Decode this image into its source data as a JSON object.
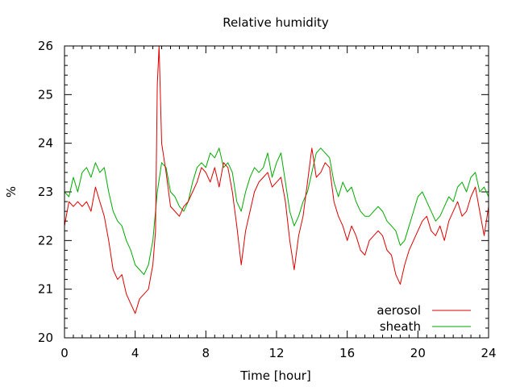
{
  "chart_data": {
    "type": "line",
    "title": "Relative humidity",
    "xlabel": "Time [hour]",
    "ylabel": "%",
    "xlim": [
      0,
      24
    ],
    "ylim": [
      20,
      26
    ],
    "x_ticks": [
      0,
      4,
      8,
      12,
      16,
      20,
      24
    ],
    "y_ticks": [
      20,
      21,
      22,
      23,
      24,
      25,
      26
    ],
    "legend_position": "bottom-right",
    "grid": false,
    "series": [
      {
        "name": "aerosol",
        "color": "#dd0000",
        "points": [
          [
            0,
            22.3
          ],
          [
            0.25,
            22.8
          ],
          [
            0.5,
            22.7
          ],
          [
            0.75,
            22.8
          ],
          [
            1,
            22.7
          ],
          [
            1.25,
            22.8
          ],
          [
            1.5,
            22.6
          ],
          [
            1.75,
            23.1
          ],
          [
            2,
            22.8
          ],
          [
            2.25,
            22.5
          ],
          [
            2.5,
            22.0
          ],
          [
            2.75,
            21.4
          ],
          [
            3,
            21.2
          ],
          [
            3.25,
            21.3
          ],
          [
            3.5,
            20.9
          ],
          [
            3.75,
            20.7
          ],
          [
            4,
            20.5
          ],
          [
            4.25,
            20.8
          ],
          [
            4.5,
            20.9
          ],
          [
            4.75,
            21.0
          ],
          [
            5,
            21.5
          ],
          [
            5.15,
            22.2
          ],
          [
            5.25,
            25.2
          ],
          [
            5.35,
            26.0
          ],
          [
            5.5,
            24.0
          ],
          [
            5.75,
            23.4
          ],
          [
            6,
            22.7
          ],
          [
            6.25,
            22.6
          ],
          [
            6.5,
            22.5
          ],
          [
            6.75,
            22.7
          ],
          [
            7,
            22.8
          ],
          [
            7.25,
            23.0
          ],
          [
            7.5,
            23.2
          ],
          [
            7.75,
            23.5
          ],
          [
            8,
            23.4
          ],
          [
            8.25,
            23.2
          ],
          [
            8.5,
            23.5
          ],
          [
            8.75,
            23.1
          ],
          [
            9,
            23.6
          ],
          [
            9.25,
            23.5
          ],
          [
            9.5,
            23.0
          ],
          [
            9.75,
            22.3
          ],
          [
            10,
            21.5
          ],
          [
            10.25,
            22.2
          ],
          [
            10.5,
            22.6
          ],
          [
            10.75,
            23.0
          ],
          [
            11,
            23.2
          ],
          [
            11.25,
            23.3
          ],
          [
            11.5,
            23.4
          ],
          [
            11.75,
            23.1
          ],
          [
            12,
            23.2
          ],
          [
            12.25,
            23.3
          ],
          [
            12.5,
            22.8
          ],
          [
            12.75,
            22.0
          ],
          [
            13,
            21.4
          ],
          [
            13.25,
            22.1
          ],
          [
            13.5,
            22.5
          ],
          [
            13.75,
            23.2
          ],
          [
            14,
            23.9
          ],
          [
            14.25,
            23.3
          ],
          [
            14.5,
            23.4
          ],
          [
            14.75,
            23.6
          ],
          [
            15,
            23.5
          ],
          [
            15.25,
            22.8
          ],
          [
            15.5,
            22.5
          ],
          [
            15.75,
            22.3
          ],
          [
            16,
            22.0
          ],
          [
            16.25,
            22.3
          ],
          [
            16.5,
            22.1
          ],
          [
            16.75,
            21.8
          ],
          [
            17,
            21.7
          ],
          [
            17.25,
            22.0
          ],
          [
            17.5,
            22.1
          ],
          [
            17.75,
            22.2
          ],
          [
            18,
            22.1
          ],
          [
            18.25,
            21.8
          ],
          [
            18.5,
            21.7
          ],
          [
            18.75,
            21.3
          ],
          [
            19,
            21.1
          ],
          [
            19.25,
            21.5
          ],
          [
            19.5,
            21.8
          ],
          [
            19.75,
            22.0
          ],
          [
            20,
            22.2
          ],
          [
            20.25,
            22.4
          ],
          [
            20.5,
            22.5
          ],
          [
            20.75,
            22.2
          ],
          [
            21,
            22.1
          ],
          [
            21.25,
            22.3
          ],
          [
            21.5,
            22.0
          ],
          [
            21.75,
            22.4
          ],
          [
            22,
            22.6
          ],
          [
            22.25,
            22.8
          ],
          [
            22.5,
            22.5
          ],
          [
            22.75,
            22.6
          ],
          [
            23,
            22.9
          ],
          [
            23.25,
            23.1
          ],
          [
            23.5,
            22.6
          ],
          [
            23.75,
            22.1
          ],
          [
            24,
            22.7
          ]
        ]
      },
      {
        "name": "sheath",
        "color": "#00aa00",
        "points": [
          [
            0,
            23.0
          ],
          [
            0.25,
            22.9
          ],
          [
            0.5,
            23.3
          ],
          [
            0.75,
            23.0
          ],
          [
            1,
            23.4
          ],
          [
            1.25,
            23.5
          ],
          [
            1.5,
            23.3
          ],
          [
            1.75,
            23.6
          ],
          [
            2,
            23.4
          ],
          [
            2.25,
            23.5
          ],
          [
            2.5,
            23.0
          ],
          [
            2.75,
            22.6
          ],
          [
            3,
            22.4
          ],
          [
            3.25,
            22.3
          ],
          [
            3.5,
            22.0
          ],
          [
            3.75,
            21.8
          ],
          [
            4,
            21.5
          ],
          [
            4.25,
            21.4
          ],
          [
            4.5,
            21.3
          ],
          [
            4.75,
            21.5
          ],
          [
            5,
            22.0
          ],
          [
            5.25,
            23.0
          ],
          [
            5.5,
            23.6
          ],
          [
            5.75,
            23.5
          ],
          [
            6,
            23.0
          ],
          [
            6.25,
            22.9
          ],
          [
            6.5,
            22.7
          ],
          [
            6.75,
            22.6
          ],
          [
            7,
            22.8
          ],
          [
            7.25,
            23.2
          ],
          [
            7.5,
            23.5
          ],
          [
            7.75,
            23.6
          ],
          [
            8,
            23.5
          ],
          [
            8.25,
            23.8
          ],
          [
            8.5,
            23.7
          ],
          [
            8.75,
            23.9
          ],
          [
            9,
            23.5
          ],
          [
            9.25,
            23.6
          ],
          [
            9.5,
            23.4
          ],
          [
            9.75,
            22.8
          ],
          [
            10,
            22.6
          ],
          [
            10.25,
            23.0
          ],
          [
            10.5,
            23.3
          ],
          [
            10.75,
            23.5
          ],
          [
            11,
            23.4
          ],
          [
            11.25,
            23.5
          ],
          [
            11.5,
            23.8
          ],
          [
            11.75,
            23.3
          ],
          [
            12,
            23.6
          ],
          [
            12.25,
            23.8
          ],
          [
            12.5,
            23.2
          ],
          [
            12.75,
            22.6
          ],
          [
            13,
            22.3
          ],
          [
            13.25,
            22.5
          ],
          [
            13.5,
            22.8
          ],
          [
            13.75,
            23.0
          ],
          [
            14,
            23.4
          ],
          [
            14.25,
            23.8
          ],
          [
            14.5,
            23.9
          ],
          [
            14.75,
            23.8
          ],
          [
            15,
            23.7
          ],
          [
            15.25,
            23.2
          ],
          [
            15.5,
            22.9
          ],
          [
            15.75,
            23.2
          ],
          [
            16,
            23.0
          ],
          [
            16.25,
            23.1
          ],
          [
            16.5,
            22.8
          ],
          [
            16.75,
            22.6
          ],
          [
            17,
            22.5
          ],
          [
            17.25,
            22.5
          ],
          [
            17.5,
            22.6
          ],
          [
            17.75,
            22.7
          ],
          [
            18,
            22.6
          ],
          [
            18.25,
            22.4
          ],
          [
            18.5,
            22.3
          ],
          [
            18.75,
            22.2
          ],
          [
            19,
            21.9
          ],
          [
            19.25,
            22.0
          ],
          [
            19.5,
            22.3
          ],
          [
            19.75,
            22.6
          ],
          [
            20,
            22.9
          ],
          [
            20.25,
            23.0
          ],
          [
            20.5,
            22.8
          ],
          [
            20.75,
            22.6
          ],
          [
            21,
            22.4
          ],
          [
            21.25,
            22.5
          ],
          [
            21.5,
            22.7
          ],
          [
            21.75,
            22.9
          ],
          [
            22,
            22.8
          ],
          [
            22.25,
            23.1
          ],
          [
            22.5,
            23.2
          ],
          [
            22.75,
            23.0
          ],
          [
            23,
            23.3
          ],
          [
            23.25,
            23.4
          ],
          [
            23.5,
            23.0
          ],
          [
            23.75,
            23.1
          ],
          [
            24,
            22.9
          ]
        ]
      }
    ]
  }
}
